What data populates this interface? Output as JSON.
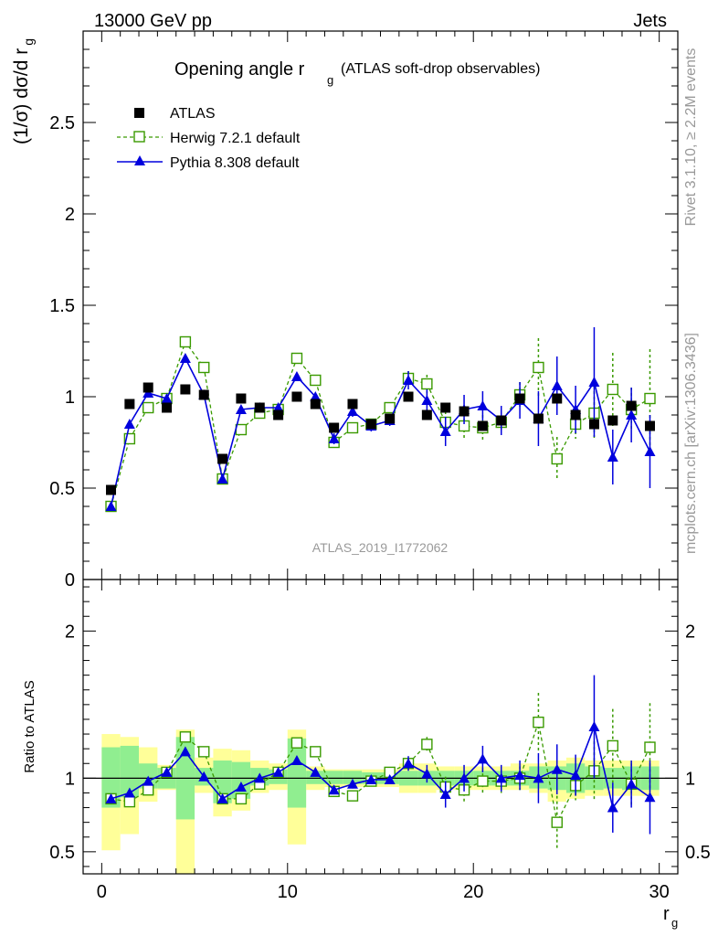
{
  "header": {
    "left": "13000 GeV pp",
    "right": "Jets"
  },
  "side": {
    "rivet": "Rivet 3.1.10, ≥ 2.2M events",
    "mcplots": "mcplots.cern.ch [arXiv:1306.3436]"
  },
  "colors": {
    "atlas": "#000000",
    "herwig": "#3a9a00",
    "pythia": "#0000dd",
    "band_inner": "#90ee90",
    "band_outer": "#ffff99"
  },
  "chart_data": {
    "type": "line",
    "title_main": "Opening angle r",
    "title_sub": "g",
    "title_rest": "(ATLAS soft-drop observables)",
    "ylabel_main": "(1/σ) dσ/d r",
    "ylabel_sub": "g",
    "ylabel_ratio": "Ratio to ATLAS",
    "xlabel_main": "r",
    "xlabel_sub": "g",
    "watermark": "ATLAS_2019_I1772062",
    "xlim": [
      -1,
      31
    ],
    "ylim_top": [
      0,
      3.0
    ],
    "ylim_ratio": [
      0.35,
      2.35
    ],
    "x_ticks": [
      "0",
      "10",
      "20",
      "30"
    ],
    "y_ticks_top": [
      "0",
      "0.5",
      "1",
      "1.5",
      "2",
      "2.5"
    ],
    "y_ticks_ratio": [
      "0.5",
      "1",
      "2"
    ],
    "x": [
      0.5,
      1.5,
      2.5,
      3.5,
      4.5,
      5.5,
      6.5,
      7.5,
      8.5,
      9.5,
      10.5,
      11.5,
      12.5,
      13.5,
      14.5,
      15.5,
      16.5,
      17.5,
      18.5,
      19.5,
      20.5,
      21.5,
      22.5,
      23.5,
      24.5,
      25.5,
      26.5,
      27.5,
      28.5,
      29.5
    ],
    "series": [
      {
        "name": "ATLAS",
        "marker": "square",
        "values": [
          0.49,
          0.96,
          1.05,
          0.94,
          1.04,
          1.01,
          0.66,
          0.99,
          0.94,
          0.9,
          1.0,
          0.96,
          0.83,
          0.96,
          0.85,
          0.88,
          1.0,
          0.9,
          0.94,
          0.92,
          0.84,
          0.87,
          0.99,
          0.88,
          0.99,
          0.9,
          0.85,
          0.87,
          0.95,
          0.84
        ]
      },
      {
        "name": "Herwig 7.2.1 default",
        "marker": "open-square",
        "values": [
          0.4,
          0.77,
          0.94,
          0.99,
          1.3,
          1.16,
          0.55,
          0.82,
          0.91,
          0.93,
          1.21,
          1.09,
          0.75,
          0.83,
          0.85,
          0.94,
          1.1,
          1.07,
          0.86,
          0.84,
          0.83,
          0.86,
          1.01,
          1.16,
          0.66,
          0.85,
          0.91,
          1.04,
          0.93,
          0.99
        ],
        "errors": [
          0,
          0,
          0,
          0,
          0,
          0,
          0,
          0,
          0,
          0,
          0,
          0,
          0,
          0,
          0,
          0.03,
          0.04,
          0.05,
          0.06,
          0.07,
          0.07,
          0.06,
          0.07,
          0.16,
          0.12,
          0.08,
          0.15,
          0.2,
          0.12,
          0.27
        ]
      },
      {
        "name": "Pythia 8.308 default",
        "marker": "triangle",
        "values": [
          0.4,
          0.85,
          1.02,
          0.99,
          1.21,
          1.01,
          0.55,
          0.93,
          0.94,
          0.94,
          1.11,
          1.0,
          0.77,
          0.92,
          0.84,
          0.87,
          1.09,
          0.98,
          0.81,
          0.93,
          0.95,
          0.87,
          0.98,
          0.88,
          1.06,
          0.93,
          1.08,
          0.67,
          0.9,
          0.7
        ],
        "errors": [
          0,
          0,
          0,
          0,
          0,
          0,
          0,
          0,
          0,
          0,
          0,
          0,
          0.03,
          0.03,
          0.03,
          0.03,
          0.05,
          0.06,
          0.08,
          0.08,
          0.08,
          0.08,
          0.1,
          0.15,
          0.16,
          0.13,
          0.3,
          0.15,
          0.15,
          0.2
        ]
      },
      {
        "name": "Herwig 7.2.1 default / ATLAS",
        "panel": "ratio",
        "values": [
          0.86,
          0.84,
          0.92,
          1.04,
          1.28,
          1.18,
          0.86,
          0.86,
          0.96,
          1.04,
          1.24,
          1.18,
          0.91,
          0.88,
          0.98,
          1.04,
          1.1,
          1.23,
          0.94,
          0.92,
          0.98,
          0.98,
          1.0,
          1.38,
          0.7,
          0.95,
          1.05,
          1.22,
          0.96,
          1.21
        ],
        "errors": [
          0,
          0,
          0,
          0,
          0,
          0,
          0,
          0,
          0,
          0,
          0,
          0,
          0,
          0,
          0,
          0.03,
          0.04,
          0.05,
          0.07,
          0.09,
          0.09,
          0.08,
          0.08,
          0.2,
          0.18,
          0.1,
          0.2,
          0.25,
          0.14,
          0.3
        ]
      },
      {
        "name": "Pythia 8.308 default / ATLAS",
        "panel": "ratio",
        "values": [
          0.86,
          0.9,
          0.98,
          1.04,
          1.18,
          1.01,
          0.86,
          0.94,
          1.0,
          1.04,
          1.12,
          1.04,
          0.92,
          0.96,
          0.99,
          0.99,
          1.1,
          1.03,
          0.89,
          1.0,
          1.13,
          1.0,
          1.02,
          1.0,
          1.06,
          1.02,
          1.35,
          0.8,
          0.96,
          0.87
        ],
        "errors": [
          0,
          0,
          0,
          0,
          0,
          0,
          0,
          0,
          0,
          0,
          0,
          0,
          0.03,
          0.03,
          0.03,
          0.03,
          0.05,
          0.06,
          0.09,
          0.09,
          0.09,
          0.09,
          0.1,
          0.17,
          0.17,
          0.14,
          0.35,
          0.17,
          0.16,
          0.25
        ]
      }
    ],
    "uncertainty_bands": {
      "inner": [
        [
          0.8,
          1.21
        ],
        [
          0.87,
          1.22
        ],
        [
          0.93,
          1.1
        ],
        [
          0.93,
          1.07
        ],
        [
          0.72,
          1.28
        ],
        [
          0.95,
          1.07
        ],
        [
          0.83,
          1.12
        ],
        [
          0.86,
          1.11
        ],
        [
          0.95,
          1.07
        ],
        [
          0.96,
          1.06
        ],
        [
          0.8,
          1.27
        ],
        [
          0.96,
          1.05
        ],
        [
          0.96,
          1.05
        ],
        [
          0.96,
          1.05
        ],
        [
          0.96,
          1.04
        ],
        [
          0.96,
          1.04
        ],
        [
          0.95,
          1.05
        ],
        [
          0.95,
          1.05
        ],
        [
          0.95,
          1.05
        ],
        [
          0.95,
          1.05
        ],
        [
          0.95,
          1.05
        ],
        [
          0.95,
          1.05
        ],
        [
          0.95,
          1.05
        ],
        [
          0.93,
          1.08
        ],
        [
          0.92,
          1.08
        ],
        [
          0.9,
          1.1
        ],
        [
          0.92,
          1.08
        ],
        [
          0.93,
          1.07
        ],
        [
          0.92,
          1.08
        ],
        [
          0.92,
          1.08
        ]
      ],
      "outer": [
        [
          0.51,
          1.3
        ],
        [
          0.62,
          1.28
        ],
        [
          0.84,
          1.21
        ],
        [
          0.92,
          1.09
        ],
        [
          0.35,
          1.33
        ],
        [
          0.9,
          1.14
        ],
        [
          0.74,
          1.2
        ],
        [
          0.78,
          1.19
        ],
        [
          0.9,
          1.12
        ],
        [
          0.92,
          1.1
        ],
        [
          0.55,
          1.33
        ],
        [
          0.92,
          1.08
        ],
        [
          0.94,
          1.06
        ],
        [
          0.94,
          1.06
        ],
        [
          0.94,
          1.06
        ],
        [
          0.94,
          1.06
        ],
        [
          0.9,
          1.1
        ],
        [
          0.9,
          1.1
        ],
        [
          0.92,
          1.08
        ],
        [
          0.92,
          1.08
        ],
        [
          0.92,
          1.08
        ],
        [
          0.92,
          1.08
        ],
        [
          0.92,
          1.1
        ],
        [
          0.9,
          1.1
        ],
        [
          0.84,
          1.12
        ],
        [
          0.86,
          1.14
        ],
        [
          0.88,
          1.12
        ],
        [
          0.88,
          1.12
        ],
        [
          0.88,
          1.12
        ],
        [
          0.88,
          1.12
        ]
      ]
    }
  }
}
